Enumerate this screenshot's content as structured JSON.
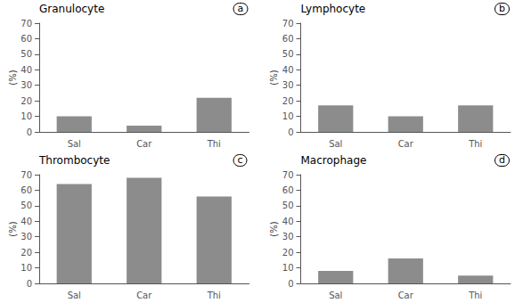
{
  "chart_data": [
    {
      "type": "bar",
      "title": "Granulocyte",
      "annotations": [
        "a"
      ],
      "ylabel": "(%)",
      "categories": [
        "Sal",
        "Car",
        "Thi"
      ],
      "values": [
        10,
        4,
        22
      ],
      "color": "#8c8c8c",
      "ylim": [
        0,
        70
      ],
      "yticks": [
        0,
        10,
        20,
        30,
        40,
        50,
        60,
        70
      ],
      "grid": false
    },
    {
      "type": "bar",
      "title": "Lymphocyte",
      "annotations": [
        "b"
      ],
      "ylabel": "(%)",
      "categories": [
        "Sal",
        "Car",
        "Thi"
      ],
      "values": [
        17,
        10,
        17
      ],
      "color": "#8c8c8c",
      "ylim": [
        0,
        70
      ],
      "yticks": [
        0,
        10,
        20,
        30,
        40,
        50,
        60,
        70
      ],
      "grid": false
    },
    {
      "type": "bar",
      "title": "Thrombocyte",
      "annotations": [
        "c"
      ],
      "ylabel": "(%)",
      "categories": [
        "Sal",
        "Car",
        "Thi"
      ],
      "values": [
        64,
        68,
        56
      ],
      "color": "#8c8c8c",
      "ylim": [
        0,
        70
      ],
      "yticks": [
        0,
        10,
        20,
        30,
        40,
        50,
        60,
        70
      ],
      "grid": false
    },
    {
      "type": "bar",
      "title": "Macrophage",
      "annotations": [
        "d"
      ],
      "ylabel": "(%)",
      "categories": [
        "Sal",
        "Car",
        "Thi"
      ],
      "values": [
        8,
        16,
        5
      ],
      "color": "#8c8c8c",
      "ylim": [
        0,
        70
      ],
      "yticks": [
        0,
        10,
        20,
        30,
        40,
        50,
        60,
        70
      ],
      "grid": false
    }
  ]
}
